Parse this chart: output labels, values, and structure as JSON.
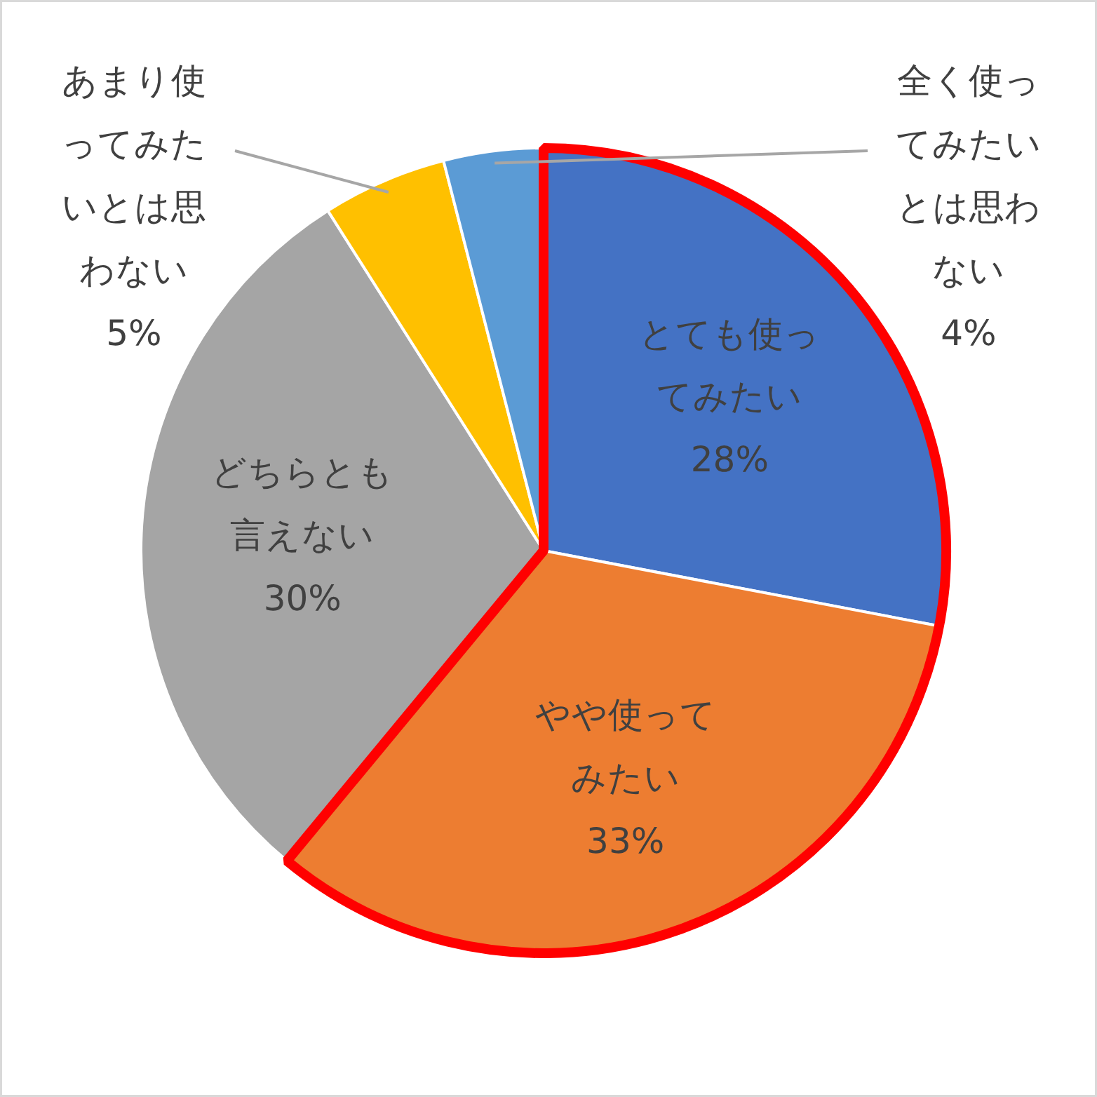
{
  "chart_data": {
    "type": "pie",
    "categories": [
      "とても使ってみたい",
      "やや使ってみたい",
      "どちらとも言えない",
      "あまり使ってみたいとは思わない",
      "全く使ってみたいとは思わない"
    ],
    "values": [
      28,
      33,
      30,
      5,
      4
    ],
    "colors": [
      "#4472c4",
      "#ed7d31",
      "#a5a5a5",
      "#ffc000",
      "#5b9bd5"
    ],
    "value_labels": [
      "28%",
      "33%",
      "30%",
      "5%",
      "4%"
    ]
  }
}
